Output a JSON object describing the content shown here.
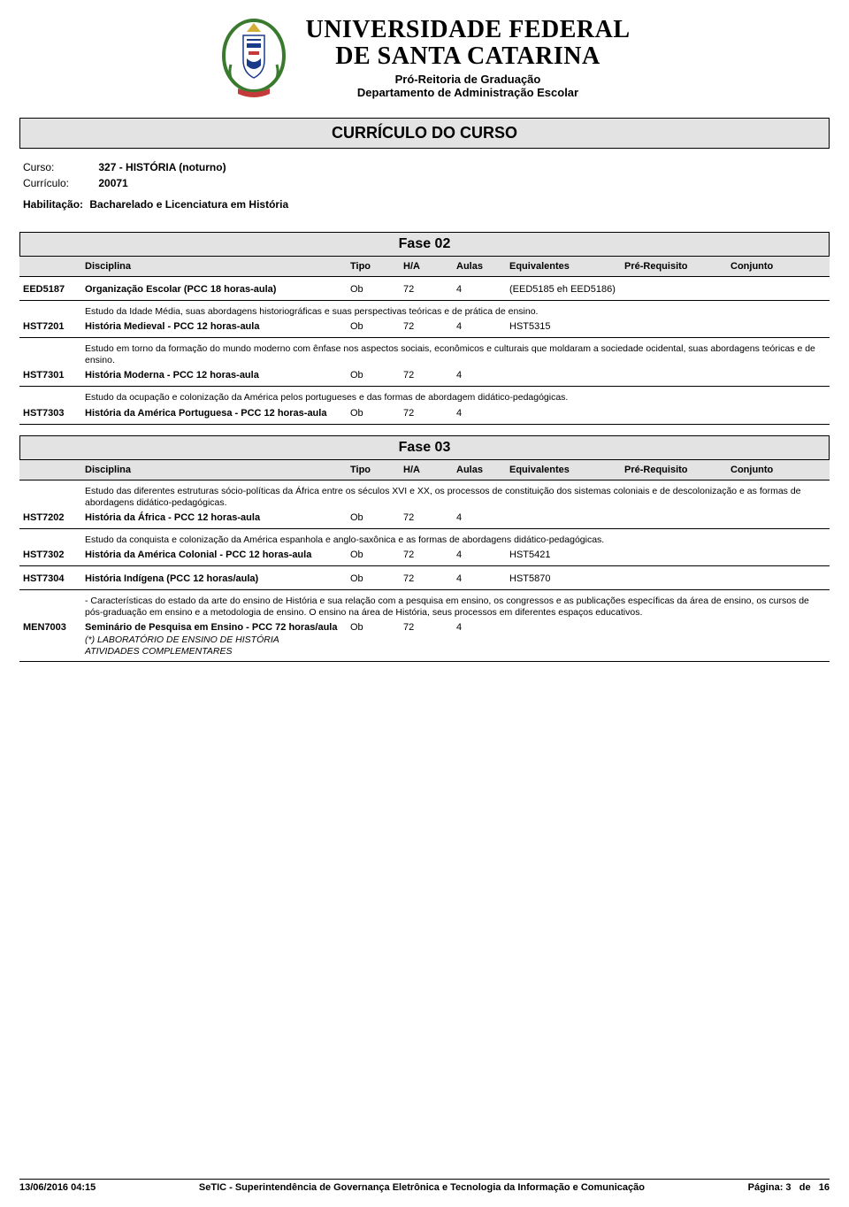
{
  "colors": {
    "background": "#ffffff",
    "text": "#000000",
    "bar_fill": "#e3e3e3",
    "border": "#000000"
  },
  "header": {
    "university_line1": "UNIVERSIDADE FEDERAL",
    "university_line2": "DE SANTA CATARINA",
    "subtitle1": "Pró-Reitoria de Graduação",
    "subtitle2": "Departamento de Administração Escolar"
  },
  "doc_title": "CURRÍCULO DO CURSO",
  "meta": {
    "curso_label": "Curso:",
    "curso_value": "327 - HISTÓRIA (noturno)",
    "curriculo_label": "Currículo:",
    "curriculo_value": "20071",
    "habilitacao_label": "Habilitação:",
    "habilitacao_value": "Bacharelado e Licenciatura em História"
  },
  "columns": {
    "disciplina": "Disciplina",
    "tipo": "Tipo",
    "ha": "H/A",
    "aulas": "Aulas",
    "equivalentes": "Equivalentes",
    "prerequisito": "Pré-Requisito",
    "conjunto": "Conjunto"
  },
  "fases": [
    {
      "title": "Fase 02",
      "groups": [
        {
          "desc": "",
          "rows": [
            {
              "code": "EED5187",
              "name": "Organização Escolar (PCC 18 horas-aula)",
              "tipo": "Ob",
              "ha": "72",
              "aulas": "4",
              "equiv": "(EED5185  eh EED5186)",
              "prereq": "",
              "conj": ""
            }
          ]
        },
        {
          "desc": "Estudo da Idade Média, suas abordagens historiográficas e suas perspectivas teóricas e de prática de ensino.",
          "rows": [
            {
              "code": "HST7201",
              "name": "História Medieval - PCC 12 horas-aula",
              "tipo": "Ob",
              "ha": "72",
              "aulas": "4",
              "equiv": "HST5315",
              "prereq": "",
              "conj": ""
            }
          ]
        },
        {
          "desc": "Estudo em torno da formação do mundo moderno com ênfase nos aspectos sociais, econômicos e culturais que moldaram a sociedade ocidental, suas abordagens teóricas e de ensino.",
          "rows": [
            {
              "code": "HST7301",
              "name": "História Moderna - PCC 12 horas-aula",
              "tipo": "Ob",
              "ha": "72",
              "aulas": "4",
              "equiv": "",
              "prereq": "",
              "conj": ""
            }
          ]
        },
        {
          "desc": "Estudo da ocupação e colonização da América pelos portugueses e das formas de abordagem didático-pedagógicas.",
          "rows": [
            {
              "code": "HST7303",
              "name": "História da América Portuguesa - PCC 12 horas-aula",
              "tipo": "Ob",
              "ha": "72",
              "aulas": "4",
              "equiv": "",
              "prereq": "",
              "conj": ""
            }
          ]
        }
      ]
    },
    {
      "title": "Fase 03",
      "groups": [
        {
          "desc": "Estudo das diferentes estruturas sócio-políticas da África entre os séculos XVI e XX, os processos de constituição dos sistemas coloniais e de descolonização e as formas de abordagens didático-pedagógicas.",
          "rows": [
            {
              "code": "HST7202",
              "name": "História da África - PCC 12 horas-aula",
              "tipo": "Ob",
              "ha": "72",
              "aulas": "4",
              "equiv": "",
              "prereq": "",
              "conj": ""
            }
          ]
        },
        {
          "desc": "Estudo da conquista e colonização da América espanhola e anglo-saxônica e as formas de abordagens didático-pedagógicas.",
          "rows": [
            {
              "code": "HST7302",
              "name": "História da América Colonial - PCC 12 horas-aula",
              "tipo": "Ob",
              "ha": "72",
              "aulas": "4",
              "equiv": "HST5421",
              "prereq": "",
              "conj": ""
            }
          ]
        },
        {
          "desc": "",
          "rows": [
            {
              "code": "HST7304",
              "name": "História Indígena (PCC 12 horas/aula)",
              "tipo": "Ob",
              "ha": "72",
              "aulas": "4",
              "equiv": "HST5870",
              "prereq": "",
              "conj": ""
            }
          ]
        },
        {
          "desc": " - Características do estado da arte do ensino de História e sua relação com a pesquisa em ensino, os congressos e as publicações específicas da área de ensino, os cursos de pós-graduação em ensino e a metodologia de ensino. O ensino na área de História, seus processos em diferentes espaços educativos.",
          "rows": [
            {
              "code": "MEN7003",
              "name": "Seminário de Pesquisa em Ensino - PCC 72 horas/aula",
              "tipo": "Ob",
              "ha": "72",
              "aulas": "4",
              "equiv": "",
              "prereq": "",
              "conj": ""
            }
          ],
          "notes": [
            "(*) LABORATÓRIO DE ENSINO DE HISTÓRIA",
            "ATIVIDADES COMPLEMENTARES"
          ]
        }
      ]
    }
  ],
  "footer": {
    "timestamp": "13/06/2016 04:15",
    "org": "SeTIC - Superintendência de Governança Eletrônica e Tecnologia da Informação e Comunicação",
    "page_label": "Página:",
    "page_current": "3",
    "page_sep": "de",
    "page_total": "16"
  }
}
